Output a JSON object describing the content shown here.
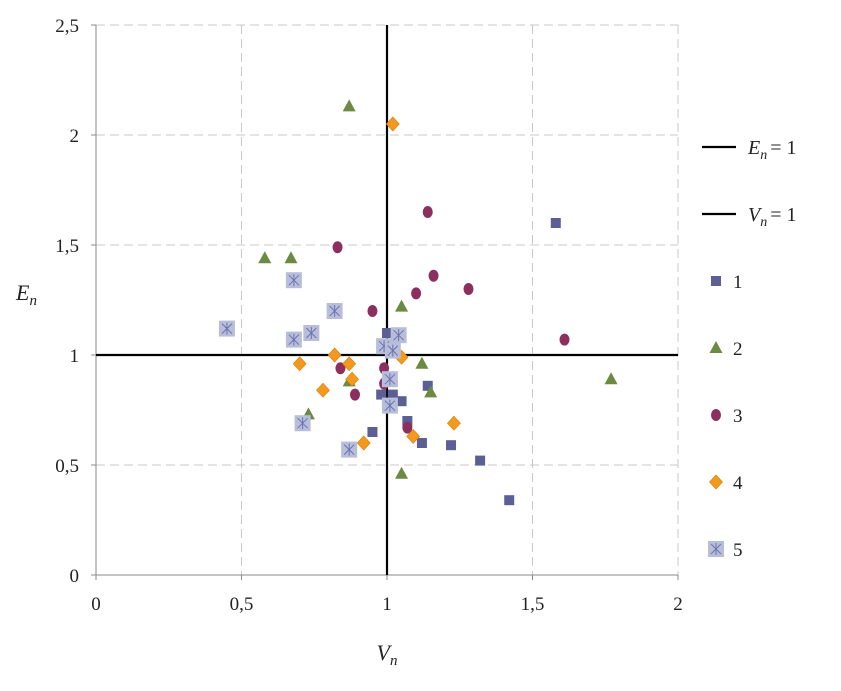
{
  "chart_data": {
    "type": "scatter",
    "xlabel": "V",
    "xlabel_sub": "n",
    "ylabel": "E",
    "ylabel_sub": "n",
    "xlim": [
      0,
      2
    ],
    "ylim": [
      0,
      2.5
    ],
    "x_ticks": [
      "0",
      "0,5",
      "1",
      "1,5",
      "2"
    ],
    "y_ticks": [
      "0",
      "0,5",
      "1",
      "1,5",
      "2",
      "2,5"
    ],
    "grid": true,
    "legend_position": "right",
    "reference_lines": [
      {
        "label_var": "E",
        "label_sub": "n",
        "label_rest": "= 1",
        "orientation": "horizontal",
        "value": 1,
        "color": "#000000"
      },
      {
        "label_var": "V",
        "label_sub": "n",
        "label_rest": "= 1",
        "orientation": "vertical",
        "value": 1,
        "color": "#000000"
      }
    ],
    "series": [
      {
        "name": "1",
        "marker": "square",
        "color": "#5b5f94",
        "points": [
          [
            1.58,
            1.6
          ],
          [
            1.0,
            1.1
          ],
          [
            1.05,
            0.79
          ],
          [
            1.14,
            0.86
          ],
          [
            1.07,
            0.7
          ],
          [
            0.95,
            0.65
          ],
          [
            1.12,
            0.6
          ],
          [
            1.22,
            0.59
          ],
          [
            1.32,
            0.52
          ],
          [
            1.42,
            0.34
          ],
          [
            1.02,
            0.82
          ],
          [
            0.98,
            0.82
          ]
        ]
      },
      {
        "name": "2",
        "marker": "triangle",
        "color": "#6d8a43",
        "points": [
          [
            0.87,
            2.13
          ],
          [
            0.58,
            1.44
          ],
          [
            0.67,
            1.44
          ],
          [
            1.05,
            1.22
          ],
          [
            1.12,
            0.96
          ],
          [
            1.15,
            0.83
          ],
          [
            1.77,
            0.89
          ],
          [
            0.87,
            0.88
          ],
          [
            0.73,
            0.73
          ],
          [
            1.05,
            0.46
          ]
        ]
      },
      {
        "name": "3",
        "marker": "circle",
        "color": "#8c2f5e",
        "points": [
          [
            1.14,
            1.65
          ],
          [
            0.83,
            1.49
          ],
          [
            1.16,
            1.36
          ],
          [
            1.28,
            1.3
          ],
          [
            1.1,
            1.28
          ],
          [
            0.95,
            1.2
          ],
          [
            1.61,
            1.07
          ],
          [
            0.99,
            0.94
          ],
          [
            0.84,
            0.94
          ],
          [
            0.89,
            0.82
          ],
          [
            0.99,
            0.87
          ],
          [
            1.07,
            0.67
          ]
        ]
      },
      {
        "name": "4",
        "marker": "diamond",
        "color": "#f39a1e",
        "points": [
          [
            1.02,
            2.05
          ],
          [
            0.82,
            1.0
          ],
          [
            0.7,
            0.96
          ],
          [
            0.87,
            0.96
          ],
          [
            0.88,
            0.89
          ],
          [
            0.78,
            0.84
          ],
          [
            1.05,
            0.99
          ],
          [
            1.23,
            0.69
          ],
          [
            1.09,
            0.63
          ],
          [
            0.92,
            0.6
          ]
        ]
      },
      {
        "name": "5",
        "marker": "square-asterisk",
        "color": "#b8bed9",
        "points": [
          [
            0.68,
            1.34
          ],
          [
            0.82,
            1.2
          ],
          [
            0.45,
            1.12
          ],
          [
            0.74,
            1.1
          ],
          [
            0.68,
            1.07
          ],
          [
            0.99,
            1.04
          ],
          [
            1.04,
            1.09
          ],
          [
            1.02,
            1.02
          ],
          [
            1.01,
            0.89
          ],
          [
            1.01,
            0.77
          ],
          [
            0.71,
            0.69
          ],
          [
            0.87,
            0.57
          ]
        ]
      }
    ]
  }
}
